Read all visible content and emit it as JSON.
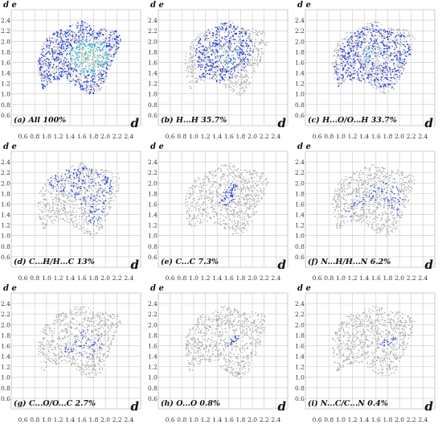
{
  "chart_data": [
    {
      "type": "scatter",
      "label": "(a) All 100%",
      "xlabel": "d",
      "ylabel": "d e",
      "x_ticks": [
        "0.6",
        "0.8",
        "1.0",
        "1.2",
        "1.4",
        "1.6",
        "1.8",
        "2.0",
        "2.2",
        "2.4"
      ],
      "y_ticks": [
        "2.4",
        "2.2",
        "2.0",
        "1.8",
        "1.6",
        "1.4",
        "1.2",
        "1.0",
        "0.8",
        "0.6"
      ],
      "xlim": [
        0.4,
        2.6
      ],
      "ylim": [
        0.4,
        2.6
      ],
      "percent": 100,
      "highlight": "all"
    },
    {
      "type": "scatter",
      "label": "(b) H...H 35.7%",
      "xlabel": "d",
      "ylabel": "d e",
      "x_ticks": [
        "0.6",
        "0.8",
        "1.0",
        "1.2",
        "1.4",
        "1.6",
        "1.8",
        "2.0",
        "2.2",
        "2.4"
      ],
      "y_ticks": [
        "2.4",
        "2.2",
        "2.0",
        "1.8",
        "1.6",
        "1.4",
        "1.2",
        "1.0",
        "0.8",
        "0.6"
      ],
      "xlim": [
        0.4,
        2.6
      ],
      "ylim": [
        0.4,
        2.6
      ],
      "percent": 35.7,
      "highlight": "hh"
    },
    {
      "type": "scatter",
      "label": "(c) H...O/O...H 33.7%",
      "xlabel": "d",
      "ylabel": "d e",
      "x_ticks": [
        "0.6",
        "0.8",
        "1.0",
        "1.2",
        "1.4",
        "1.6",
        "1.8",
        "2.0",
        "2.2",
        "2.4"
      ],
      "y_ticks": [
        "2.4",
        "2.2",
        "2.0",
        "1.8",
        "1.6",
        "1.4",
        "1.2",
        "1.0",
        "0.8",
        "0.6"
      ],
      "xlim": [
        0.4,
        2.6
      ],
      "ylim": [
        0.4,
        2.6
      ],
      "percent": 33.7,
      "highlight": "ho"
    },
    {
      "type": "scatter",
      "label": "(d) C...H/H...C 13%",
      "xlabel": "d",
      "ylabel": "d e",
      "x_ticks": [
        "0.6",
        "0.8",
        "1.0",
        "1.2",
        "1.4",
        "1.6",
        "1.8",
        "2.0",
        "2.2",
        "2.4"
      ],
      "y_ticks": [
        "2.4",
        "2.2",
        "2.0",
        "1.8",
        "1.6",
        "1.4",
        "1.2",
        "1.0",
        "0.8",
        "0.6"
      ],
      "xlim": [
        0.4,
        2.6
      ],
      "ylim": [
        0.4,
        2.6
      ],
      "percent": 13,
      "highlight": "ch"
    },
    {
      "type": "scatter",
      "label": "(e) C...C 7.3%",
      "xlabel": "d",
      "ylabel": "d e",
      "x_ticks": [
        "0.6",
        "0.8",
        "1.0",
        "1.2",
        "1.4",
        "1.6",
        "1.8",
        "2.0",
        "2.2",
        "2.4"
      ],
      "y_ticks": [
        "2.4",
        "2.2",
        "2.0",
        "1.8",
        "1.6",
        "1.4",
        "1.2",
        "1.0",
        "0.8",
        "0.6"
      ],
      "xlim": [
        0.4,
        2.6
      ],
      "ylim": [
        0.4,
        2.6
      ],
      "percent": 7.3,
      "highlight": "cc"
    },
    {
      "type": "scatter",
      "label": "(f) N...H/H...N 6.2%",
      "xlabel": "d",
      "ylabel": "d e",
      "x_ticks": [
        "0.6",
        "0.8",
        "1.0",
        "1.2",
        "1.4",
        "1.6",
        "1.8",
        "2.0",
        "2.2",
        "2.4"
      ],
      "y_ticks": [
        "2.4",
        "2.2",
        "2.0",
        "1.8",
        "1.6",
        "1.4",
        "1.2",
        "1.0",
        "0.8",
        "0.6"
      ],
      "xlim": [
        0.4,
        2.6
      ],
      "ylim": [
        0.4,
        2.6
      ],
      "percent": 6.2,
      "highlight": "nh"
    },
    {
      "type": "scatter",
      "label": "(g) C...O/O...C 2.7%",
      "xlabel": "d",
      "ylabel": "d e",
      "x_ticks": [
        "0.6",
        "0.8",
        "1.0",
        "1.2",
        "1.4",
        "1.6",
        "1.8",
        "2.0",
        "2.2",
        "2.4"
      ],
      "y_ticks": [
        "2.4",
        "2.2",
        "2.0",
        "1.8",
        "1.6",
        "1.4",
        "1.2",
        "1.0",
        "0.8",
        "0.6"
      ],
      "xlim": [
        0.4,
        2.6
      ],
      "ylim": [
        0.4,
        2.6
      ],
      "percent": 2.7,
      "highlight": "co"
    },
    {
      "type": "scatter",
      "label": "(h) O...O 0.8%",
      "xlabel": "d",
      "ylabel": "d e",
      "x_ticks": [
        "0.6",
        "0.8",
        "1.0",
        "1.2",
        "1.4",
        "1.6",
        "1.8",
        "2.0",
        "2.2",
        "2.4"
      ],
      "y_ticks": [
        "2.4",
        "2.2",
        "2.0",
        "1.8",
        "1.6",
        "1.4",
        "1.2",
        "1.0",
        "0.8",
        "0.6"
      ],
      "xlim": [
        0.4,
        2.6
      ],
      "ylim": [
        0.4,
        2.6
      ],
      "percent": 0.8,
      "highlight": "oo"
    },
    {
      "type": "scatter",
      "label": "(i) N...C/C...N 0.4%",
      "xlabel": "d",
      "ylabel": "d e",
      "x_ticks": [
        "0.6",
        "0.8",
        "1.0",
        "1.2",
        "1.4",
        "1.6",
        "1.8",
        "2.0",
        "2.2",
        "2.4"
      ],
      "y_ticks": [
        "2.4",
        "2.2",
        "2.0",
        "1.8",
        "1.6",
        "1.4",
        "1.2",
        "1.0",
        "0.8",
        "0.6"
      ],
      "xlim": [
        0.4,
        2.6
      ],
      "ylim": [
        0.4,
        2.6
      ],
      "percent": 0.4,
      "highlight": "nc"
    }
  ],
  "colors": {
    "grid": "#c8c8c8",
    "gray_points": "#a9a9a9",
    "blue_points": "#1a35e6",
    "green_points": "#35d08a",
    "cyan_points": "#1fa8e8"
  }
}
